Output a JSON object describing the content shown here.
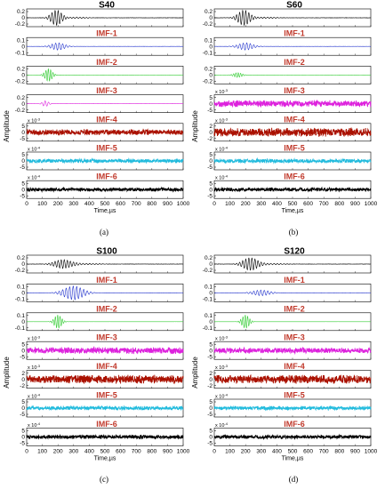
{
  "chart_data": [
    {
      "type": "line",
      "caption": "(a)",
      "xlabel": "Time,µs",
      "ylabel": "Amplitude",
      "xlim": [
        0,
        1000
      ],
      "xticks": [
        "0",
        "100",
        "200",
        "300",
        "400",
        "500",
        "600",
        "700",
        "800",
        "900",
        "1000"
      ],
      "panels": [
        {
          "title": "S40",
          "kind": "signal",
          "color": "#000000",
          "yticks": [
            "0.2",
            "0",
            "-0.2"
          ],
          "exponent": "",
          "center": 190,
          "width": 45,
          "amp": 0.95,
          "noise": 0.02
        },
        {
          "title": "IMF-1",
          "kind": "imf",
          "color": "#2233cc",
          "yticks": [
            "0.1",
            "0",
            "-0.1"
          ],
          "exponent": "",
          "center": 200,
          "width": 55,
          "amp": 0.45,
          "noise": 0.01
        },
        {
          "title": "IMF-2",
          "kind": "imf",
          "color": "#33cc33",
          "yticks": [
            "0.2",
            "0",
            "-0.2"
          ],
          "exponent": "",
          "center": 140,
          "width": 30,
          "amp": 0.8,
          "noise": 0.005
        },
        {
          "title": "IMF-3",
          "kind": "imf",
          "color": "#dd22dd",
          "yticks": [
            "0.2",
            "0",
            "-0.2"
          ],
          "exponent": "",
          "center": 120,
          "width": 25,
          "amp": 0.35,
          "noise": 0.01
        },
        {
          "title": "IMF-4",
          "kind": "noise",
          "color": "#aa1100",
          "yticks": [
            "5",
            "0",
            "-5"
          ],
          "exponent": "x 10",
          "exponentPower": "-3",
          "center": 0,
          "width": 0,
          "amp": 0,
          "noise": 0.3
        },
        {
          "title": "IMF-5",
          "kind": "noise",
          "color": "#22bbdd",
          "yticks": [
            "5",
            "0",
            "-5"
          ],
          "exponent": "x 10",
          "exponentPower": "-4",
          "center": 0,
          "width": 0,
          "amp": 0,
          "noise": 0.22
        },
        {
          "title": "IMF-6",
          "kind": "noise",
          "color": "#000000",
          "yticks": [
            "5",
            "0",
            "-5"
          ],
          "exponent": "x 10",
          "exponentPower": "-4",
          "center": 0,
          "width": 0,
          "amp": 0,
          "noise": 0.2
        }
      ]
    },
    {
      "type": "line",
      "caption": "(b)",
      "xlabel": "Time,µs",
      "ylabel": "Amplitude",
      "xlim": [
        0,
        1000
      ],
      "xticks": [
        "0",
        "100",
        "200",
        "300",
        "400",
        "500",
        "600",
        "700",
        "800",
        "900",
        "1000"
      ],
      "panels": [
        {
          "title": "S60",
          "kind": "signal",
          "color": "#000000",
          "yticks": [
            "0.2",
            "0",
            "-0.2"
          ],
          "exponent": "",
          "center": 190,
          "width": 50,
          "amp": 0.95,
          "noise": 0.02
        },
        {
          "title": "IMF-1",
          "kind": "imf",
          "color": "#2233cc",
          "yticks": [
            "0.1",
            "0",
            "-0.1"
          ],
          "exponent": "",
          "center": 200,
          "width": 60,
          "amp": 0.45,
          "noise": 0.01
        },
        {
          "title": "IMF-2",
          "kind": "imf",
          "color": "#33cc33",
          "yticks": [
            "0.2",
            "0",
            "-0.2"
          ],
          "exponent": "",
          "center": 150,
          "width": 35,
          "amp": 0.3,
          "noise": 0.005
        },
        {
          "title": "IMF-3",
          "kind": "noise",
          "color": "#dd22dd",
          "yticks": [
            "5",
            "0",
            "-5"
          ],
          "exponent": "x 10",
          "exponentPower": "-3",
          "center": 0,
          "width": 0,
          "amp": 0,
          "noise": 0.35
        },
        {
          "title": "IMF-4",
          "kind": "noise",
          "color": "#aa1100",
          "yticks": [
            "2",
            "0",
            "-2"
          ],
          "exponent": "x 10",
          "exponentPower": "-3",
          "center": 0,
          "width": 0,
          "amp": 0,
          "noise": 0.45
        },
        {
          "title": "IMF-5",
          "kind": "noise",
          "color": "#22bbdd",
          "yticks": [
            "5",
            "0",
            "-5"
          ],
          "exponent": "x 10",
          "exponentPower": "-4",
          "center": 0,
          "width": 0,
          "amp": 0,
          "noise": 0.22
        },
        {
          "title": "IMF-6",
          "kind": "noise",
          "color": "#000000",
          "yticks": [
            "5",
            "0",
            "-5"
          ],
          "exponent": "x 10",
          "exponentPower": "-4",
          "center": 0,
          "width": 0,
          "amp": 0,
          "noise": 0.2
        }
      ]
    },
    {
      "type": "line",
      "caption": "(c)",
      "xlabel": "Time,µs",
      "ylabel": "Amplitude",
      "xlim": [
        0,
        1000
      ],
      "xticks": [
        "0",
        "100",
        "200",
        "300",
        "400",
        "500",
        "600",
        "700",
        "800",
        "900",
        "1000"
      ],
      "panels": [
        {
          "title": "S100",
          "kind": "signal",
          "color": "#000000",
          "yticks": [
            "0.2",
            "0",
            "-0.2"
          ],
          "exponent": "",
          "center": 230,
          "width": 70,
          "amp": 0.55,
          "noise": 0.02
        },
        {
          "title": "IMF-1",
          "kind": "imf",
          "color": "#2233cc",
          "yticks": [
            "0.1",
            "0",
            "-0.1"
          ],
          "exponent": "",
          "center": 300,
          "width": 80,
          "amp": 0.85,
          "noise": 0.01
        },
        {
          "title": "IMF-2",
          "kind": "imf",
          "color": "#33cc33",
          "yticks": [
            "0.1",
            "0",
            "-0.1"
          ],
          "exponent": "",
          "center": 200,
          "width": 30,
          "amp": 0.85,
          "noise": 0.005
        },
        {
          "title": "IMF-3",
          "kind": "noise",
          "color": "#dd22dd",
          "yticks": [
            "5",
            "0",
            "-5"
          ],
          "exponent": "x 10",
          "exponentPower": "-3",
          "center": 0,
          "width": 0,
          "amp": 0,
          "noise": 0.35
        },
        {
          "title": "IMF-4",
          "kind": "noise",
          "color": "#aa1100",
          "yticks": [
            "2",
            "0",
            "-2"
          ],
          "exponent": "x 10",
          "exponentPower": "-3",
          "center": 0,
          "width": 0,
          "amp": 0,
          "noise": 0.45
        },
        {
          "title": "IMF-5",
          "kind": "noise",
          "color": "#22bbdd",
          "yticks": [
            "5",
            "0",
            "-5"
          ],
          "exponent": "x 10",
          "exponentPower": "-4",
          "center": 0,
          "width": 0,
          "amp": 0,
          "noise": 0.22
        },
        {
          "title": "IMF-6",
          "kind": "noise",
          "color": "#000000",
          "yticks": [
            "5",
            "0",
            "-5"
          ],
          "exponent": "x 10",
          "exponentPower": "-4",
          "center": 0,
          "width": 0,
          "amp": 0,
          "noise": 0.22
        }
      ]
    },
    {
      "type": "line",
      "caption": "(d)",
      "xlabel": "Time,µs",
      "ylabel": "Amplitude",
      "xlim": [
        0,
        1000
      ],
      "xticks": [
        "0",
        "100",
        "200",
        "300",
        "400",
        "500",
        "600",
        "700",
        "800",
        "900",
        "1000"
      ],
      "panels": [
        {
          "title": "S120",
          "kind": "signal",
          "color": "#000000",
          "yticks": [
            "0.2",
            "0",
            "-0.2"
          ],
          "exponent": "",
          "center": 230,
          "width": 60,
          "amp": 0.8,
          "noise": 0.02
        },
        {
          "title": "IMF-1",
          "kind": "imf",
          "color": "#2233cc",
          "yticks": [
            "0.1",
            "0",
            "-0.1"
          ],
          "exponent": "",
          "center": 300,
          "width": 70,
          "amp": 0.35,
          "noise": 0.01
        },
        {
          "title": "IMF-2",
          "kind": "imf",
          "color": "#33cc33",
          "yticks": [
            "0.1",
            "0",
            "-0.1"
          ],
          "exponent": "",
          "center": 200,
          "width": 30,
          "amp": 0.85,
          "noise": 0.005
        },
        {
          "title": "IMF-3",
          "kind": "noise",
          "color": "#dd22dd",
          "yticks": [
            "5",
            "0",
            "-5"
          ],
          "exponent": "x 10",
          "exponentPower": "-3",
          "center": 0,
          "width": 0,
          "amp": 0,
          "noise": 0.3
        },
        {
          "title": "IMF-4",
          "kind": "noise",
          "color": "#aa1100",
          "yticks": [
            "2",
            "0",
            "-2"
          ],
          "exponent": "x 10",
          "exponentPower": "-3",
          "center": 0,
          "width": 0,
          "amp": 0,
          "noise": 0.45
        },
        {
          "title": "IMF-5",
          "kind": "noise",
          "color": "#22bbdd",
          "yticks": [
            "5",
            "0",
            "-5"
          ],
          "exponent": "x 10",
          "exponentPower": "-4",
          "center": 0,
          "width": 0,
          "amp": 0,
          "noise": 0.2
        },
        {
          "title": "IMF-6",
          "kind": "noise",
          "color": "#000000",
          "yticks": [
            "5",
            "0",
            "-5"
          ],
          "exponent": "x 10",
          "exponentPower": "-4",
          "center": 0,
          "width": 0,
          "amp": 0,
          "noise": 0.2
        }
      ]
    }
  ]
}
